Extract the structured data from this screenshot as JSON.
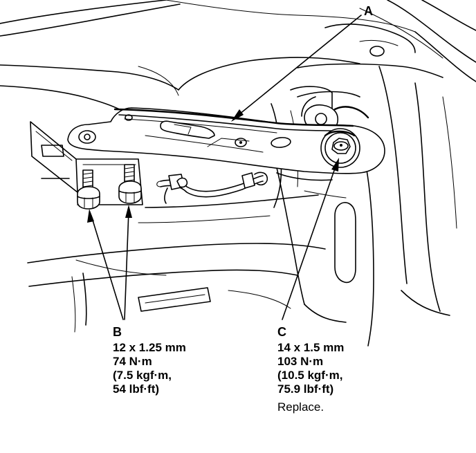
{
  "callouts": {
    "a": {
      "letter": "A"
    },
    "b": {
      "letter": "B",
      "lines": [
        "12 x 1.25 mm",
        "74 N·m",
        "(7.5 kgf·m,",
        "54 lbf·ft)"
      ]
    },
    "c": {
      "letter": "C",
      "lines": [
        "14 x 1.5 mm",
        "103 N·m",
        "(10.5 kgf·m,",
        "75.9 lbf·ft)"
      ],
      "note": "Replace."
    }
  }
}
